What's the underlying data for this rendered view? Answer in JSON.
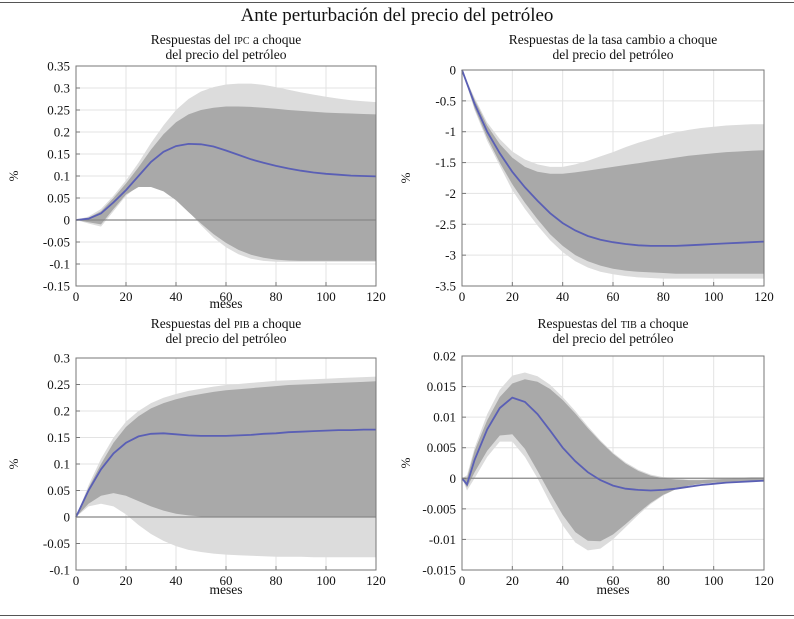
{
  "figure": {
    "title": "Ante perturbación del precio del petróleo"
  },
  "chart_data": [
    {
      "type": "area",
      "title_lines": [
        [
          {
            "t": "Respuestas del "
          },
          {
            "t": "IPC",
            "sc": true
          },
          {
            "t": " a choque"
          }
        ],
        [
          {
            "t": "del precio del petróleo"
          }
        ]
      ],
      "title_key": "Respuestas del IPC a choque del precio del petróleo",
      "xlabel": "meses",
      "ylabel": "%",
      "xlim": [
        0,
        120
      ],
      "ylim": [
        -0.15,
        0.35
      ],
      "xticks": [
        "0",
        "20",
        "40",
        "60",
        "80",
        "100",
        "120"
      ],
      "yticks": [
        "-0.15",
        "-0.1",
        "-0.05",
        "0",
        "0.05",
        "0.1",
        "0.15",
        "0.2",
        "0.25",
        "0.3",
        "0.35"
      ],
      "x": [
        0,
        5,
        10,
        15,
        20,
        25,
        30,
        35,
        40,
        45,
        50,
        55,
        60,
        65,
        70,
        75,
        80,
        85,
        90,
        95,
        100,
        105,
        110,
        115,
        120
      ],
      "response": [
        0,
        0.003,
        0.015,
        0.04,
        0.068,
        0.1,
        0.132,
        0.155,
        0.168,
        0.173,
        0.172,
        0.167,
        0.158,
        0.148,
        0.138,
        0.13,
        0.123,
        0.117,
        0.112,
        0.108,
        0.105,
        0.103,
        0.101,
        0.1,
        0.099
      ],
      "band_outer_upper": [
        0,
        0.008,
        0.025,
        0.055,
        0.09,
        0.13,
        0.175,
        0.215,
        0.25,
        0.275,
        0.292,
        0.302,
        0.308,
        0.31,
        0.31,
        0.307,
        0.302,
        0.296,
        0.29,
        0.285,
        0.28,
        0.276,
        0.272,
        0.27,
        0.268
      ],
      "band_outer_lower": [
        0,
        -0.008,
        -0.015,
        0.02,
        0.055,
        0.078,
        0.082,
        0.07,
        0.05,
        0.02,
        -0.012,
        -0.04,
        -0.062,
        -0.078,
        -0.088,
        -0.093,
        -0.095,
        -0.095,
        -0.095,
        -0.095,
        -0.095,
        -0.095,
        -0.095,
        -0.095,
        -0.095
      ],
      "band_inner_upper": [
        0,
        0.005,
        0.02,
        0.05,
        0.083,
        0.12,
        0.16,
        0.195,
        0.222,
        0.24,
        0.25,
        0.255,
        0.258,
        0.258,
        0.257,
        0.255,
        0.253,
        0.25,
        0.248,
        0.246,
        0.244,
        0.243,
        0.242,
        0.241,
        0.24
      ],
      "band_inner_lower": [
        0,
        -0.005,
        -0.01,
        0.025,
        0.058,
        0.075,
        0.075,
        0.065,
        0.045,
        0.018,
        -0.008,
        -0.032,
        -0.052,
        -0.068,
        -0.079,
        -0.086,
        -0.09,
        -0.092,
        -0.093,
        -0.093,
        -0.093,
        -0.093,
        -0.093,
        -0.093,
        -0.093
      ],
      "zero_line": true
    },
    {
      "type": "area",
      "title_lines": [
        [
          {
            "t": "Respuestas de la tasa cambio a choque"
          }
        ],
        [
          {
            "t": "del precio del petróleo"
          }
        ]
      ],
      "title_key": "Respuestas de la tasa cambio a choque del precio del petróleo",
      "xlabel": "",
      "ylabel": "%",
      "xlim": [
        0,
        120
      ],
      "ylim": [
        -3.5,
        0
      ],
      "xticks": [
        "0",
        "20",
        "40",
        "60",
        "80",
        "100",
        "120"
      ],
      "yticks": [
        "-3.5",
        "-3",
        "-2.5",
        "-2",
        "-1.5",
        "-1",
        "-0.5",
        "0"
      ],
      "x": [
        0,
        5,
        10,
        15,
        20,
        25,
        30,
        35,
        40,
        45,
        50,
        55,
        60,
        65,
        70,
        75,
        80,
        85,
        90,
        95,
        100,
        105,
        110,
        115,
        120
      ],
      "response": [
        0,
        -0.55,
        -1.0,
        -1.35,
        -1.65,
        -1.9,
        -2.12,
        -2.32,
        -2.48,
        -2.6,
        -2.69,
        -2.75,
        -2.79,
        -2.82,
        -2.84,
        -2.85,
        -2.85,
        -2.85,
        -2.84,
        -2.83,
        -2.82,
        -2.81,
        -2.8,
        -2.79,
        -2.78
      ],
      "band_outer_upper": [
        0,
        -0.45,
        -0.85,
        -1.12,
        -1.32,
        -1.45,
        -1.53,
        -1.57,
        -1.57,
        -1.53,
        -1.47,
        -1.4,
        -1.33,
        -1.25,
        -1.18,
        -1.12,
        -1.06,
        -1.01,
        -0.97,
        -0.94,
        -0.92,
        -0.9,
        -0.89,
        -0.88,
        -0.88
      ],
      "band_outer_lower": [
        0,
        -0.65,
        -1.15,
        -1.55,
        -1.95,
        -2.25,
        -2.52,
        -2.76,
        -2.95,
        -3.1,
        -3.2,
        -3.27,
        -3.31,
        -3.34,
        -3.36,
        -3.37,
        -3.38,
        -3.38,
        -3.38,
        -3.38,
        -3.38,
        -3.38,
        -3.38,
        -3.38,
        -3.38
      ],
      "band_inner_upper": [
        0,
        -0.48,
        -0.9,
        -1.2,
        -1.42,
        -1.57,
        -1.65,
        -1.68,
        -1.68,
        -1.66,
        -1.63,
        -1.6,
        -1.57,
        -1.54,
        -1.51,
        -1.48,
        -1.45,
        -1.42,
        -1.39,
        -1.37,
        -1.35,
        -1.33,
        -1.32,
        -1.31,
        -1.3
      ],
      "band_inner_lower": [
        0,
        -0.62,
        -1.1,
        -1.5,
        -1.85,
        -2.15,
        -2.42,
        -2.66,
        -2.85,
        -3.0,
        -3.1,
        -3.17,
        -3.22,
        -3.25,
        -3.27,
        -3.28,
        -3.29,
        -3.3,
        -3.3,
        -3.3,
        -3.3,
        -3.3,
        -3.3,
        -3.3,
        -3.3
      ],
      "zero_line": false
    },
    {
      "type": "area",
      "title_lines": [
        [
          {
            "t": "Respuestas del "
          },
          {
            "t": "PIB",
            "sc": true
          },
          {
            "t": " a choque"
          }
        ],
        [
          {
            "t": "del precio del petróleo"
          }
        ]
      ],
      "title_key": "Respuestas del PIB a choque del precio del petróleo",
      "xlabel": "meses",
      "ylabel": "%",
      "xlim": [
        0,
        120
      ],
      "ylim": [
        -0.1,
        0.3
      ],
      "xticks": [
        "0",
        "20",
        "40",
        "60",
        "80",
        "100",
        "120"
      ],
      "yticks": [
        "-0.1",
        "-0.05",
        "0",
        "0.05",
        "0.1",
        "0.15",
        "0.2",
        "0.25",
        "0.3"
      ],
      "x": [
        0,
        5,
        10,
        15,
        20,
        25,
        30,
        35,
        40,
        45,
        50,
        55,
        60,
        65,
        70,
        75,
        80,
        85,
        90,
        95,
        100,
        105,
        110,
        115,
        120
      ],
      "response": [
        0,
        0.05,
        0.09,
        0.12,
        0.14,
        0.152,
        0.157,
        0.158,
        0.156,
        0.154,
        0.153,
        0.153,
        0.153,
        0.154,
        0.155,
        0.157,
        0.158,
        0.16,
        0.161,
        0.162,
        0.163,
        0.164,
        0.164,
        0.165,
        0.165
      ],
      "band_outer_upper": [
        0,
        0.06,
        0.11,
        0.15,
        0.18,
        0.2,
        0.215,
        0.225,
        0.232,
        0.238,
        0.242,
        0.246,
        0.249,
        0.251,
        0.253,
        0.255,
        0.257,
        0.258,
        0.259,
        0.26,
        0.261,
        0.262,
        0.263,
        0.264,
        0.265
      ],
      "band_outer_lower": [
        0,
        0.02,
        0.025,
        0.02,
        0.005,
        -0.015,
        -0.032,
        -0.045,
        -0.055,
        -0.062,
        -0.066,
        -0.069,
        -0.071,
        -0.072,
        -0.073,
        -0.074,
        -0.075,
        -0.075,
        -0.075,
        -0.076,
        -0.076,
        -0.076,
        -0.076,
        -0.076,
        -0.076
      ],
      "band_inner_upper": [
        0,
        0.055,
        0.1,
        0.14,
        0.17,
        0.19,
        0.205,
        0.215,
        0.222,
        0.228,
        0.232,
        0.236,
        0.239,
        0.241,
        0.243,
        0.245,
        0.247,
        0.249,
        0.25,
        0.251,
        0.252,
        0.253,
        0.254,
        0.255,
        0.256
      ],
      "band_inner_lower": [
        0,
        0.025,
        0.04,
        0.045,
        0.04,
        0.03,
        0.02,
        0.012,
        0.006,
        0.003,
        0.001,
        0,
        0,
        0,
        0,
        0,
        0,
        0,
        0,
        0,
        0,
        0,
        0,
        0,
        0
      ],
      "zero_line": true
    },
    {
      "type": "area",
      "title_lines": [
        [
          {
            "t": "Respuestas del "
          },
          {
            "t": "TIB",
            "sc": true
          },
          {
            "t": " a choque"
          }
        ],
        [
          {
            "t": "del precio del petróleo"
          }
        ]
      ],
      "title_key": "Respuestas del TIB a choque del precio del petróleo",
      "xlabel": "meses",
      "ylabel": "%",
      "xlim": [
        0,
        120
      ],
      "ylim": [
        -0.015,
        0.02
      ],
      "xticks": [
        "0",
        "20",
        "40",
        "60",
        "80",
        "100",
        "120"
      ],
      "yticks": [
        "-0.015",
        "-0.01",
        "-0.005",
        "0",
        "0.005",
        "0.01",
        "0.015",
        "0.02"
      ],
      "x": [
        0,
        2,
        5,
        10,
        15,
        20,
        25,
        30,
        35,
        40,
        45,
        50,
        55,
        60,
        65,
        70,
        75,
        80,
        85,
        90,
        95,
        100,
        105,
        110,
        115,
        120
      ],
      "response": [
        0,
        -0.001,
        0.003,
        0.008,
        0.0115,
        0.0132,
        0.0125,
        0.0105,
        0.0078,
        0.005,
        0.0028,
        0.001,
        -0.0003,
        -0.0012,
        -0.0017,
        -0.0019,
        -0.002,
        -0.0019,
        -0.0017,
        -0.0014,
        -0.0011,
        -0.0009,
        -0.0007,
        -0.0006,
        -0.0005,
        -0.0004
      ],
      "band_outer_upper": [
        0,
        0.0005,
        0.005,
        0.0105,
        0.0145,
        0.0168,
        0.0173,
        0.0167,
        0.0153,
        0.0133,
        0.011,
        0.0085,
        0.0062,
        0.0042,
        0.0026,
        0.0014,
        0.0006,
        0.0002,
        0,
        -0.0002,
        -0.0002,
        -0.0001,
        0,
        0.0001,
        0.0002,
        0.0002
      ],
      "band_outer_lower": [
        0,
        -0.002,
        0,
        0.0035,
        0.006,
        0.006,
        0.0035,
        0,
        -0.004,
        -0.0077,
        -0.0105,
        -0.0118,
        -0.0115,
        -0.01,
        -0.008,
        -0.006,
        -0.0042,
        -0.0028,
        -0.0018,
        -0.0012,
        -0.0009,
        -0.0007,
        -0.0006,
        -0.0005,
        -0.0005,
        -0.0005
      ],
      "band_inner_upper": [
        0,
        0,
        0.0045,
        0.0095,
        0.0133,
        0.0155,
        0.0162,
        0.0158,
        0.0146,
        0.0128,
        0.0106,
        0.0082,
        0.006,
        0.004,
        0.0024,
        0.0012,
        0.0004,
        0,
        -0.0002,
        -0.0003,
        -0.0003,
        -0.0002,
        -0.0001,
        0,
        0.0001,
        0.0001
      ],
      "band_inner_lower": [
        0,
        -0.0015,
        0.001,
        0.0045,
        0.007,
        0.0072,
        0.0048,
        0.0012,
        -0.0025,
        -0.006,
        -0.0088,
        -0.0102,
        -0.0103,
        -0.0092,
        -0.0075,
        -0.0057,
        -0.004,
        -0.0027,
        -0.0018,
        -0.0012,
        -0.0009,
        -0.0007,
        -0.0006,
        -0.0005,
        -0.0005,
        -0.0005
      ],
      "zero_line": true
    }
  ]
}
